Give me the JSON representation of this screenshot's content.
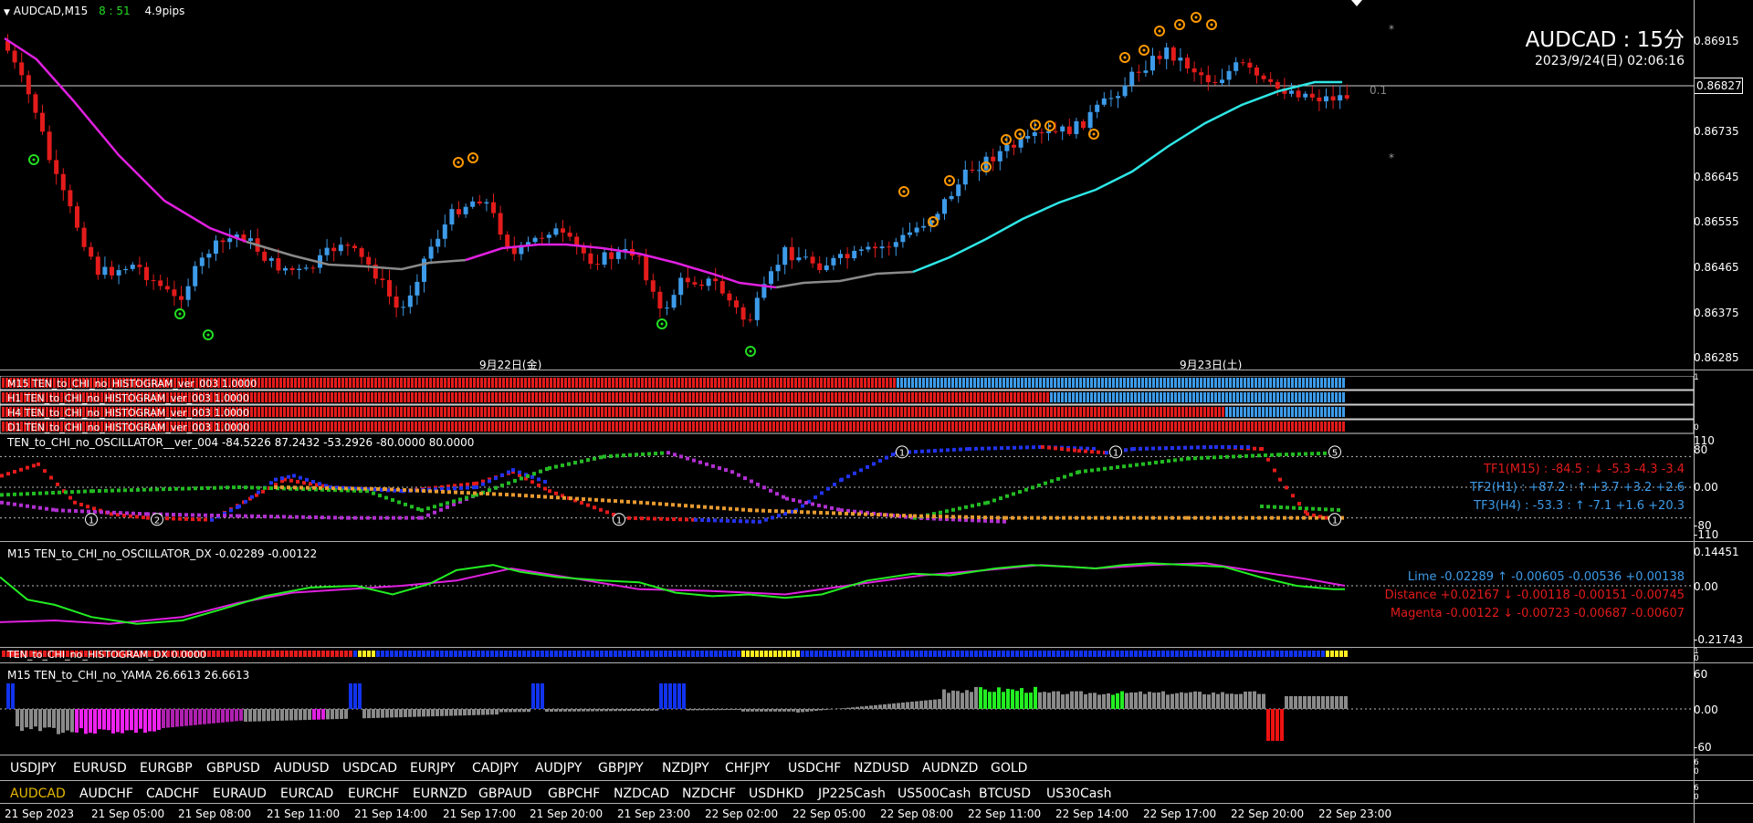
{
  "header": {
    "symbol_tf": "AUDCAD,M15",
    "countdown": "8 : 51",
    "spread": "4.9pips"
  },
  "overlay": {
    "title": "AUDCAD : 15分",
    "datetime": "2023/9/24(日) 02:06:16",
    "level_label": "0.1",
    "star": "*"
  },
  "colors": {
    "bull": "#3d9be9",
    "bear": "#e31b1b",
    "ma_down": "#e020e0",
    "ma_up": "#2ee6e6",
    "ma_flat": "#8a8a8a",
    "signal_orange": "#ff9900",
    "signal_green": "#22dd22"
  },
  "main_chart": {
    "current_price": "0.86827",
    "price_ticks": [
      "0.86915",
      "0.86735",
      "0.86645",
      "0.86555",
      "0.86465",
      "0.86375",
      "0.86285"
    ],
    "date_markers": [
      "9月22日(金)",
      "9月23日(土)"
    ]
  },
  "histograms": {
    "rows": [
      {
        "label": "M15 TEN_to_CHI_no_HISTOGRAM_ver_003 1.0000",
        "bull_from": 0.665
      },
      {
        "label": "H1 TEN_to_CHI_no_HISTOGRAM_ver_003 1.0000",
        "bull_from": 0.78
      },
      {
        "label": "H4 TEN_to_CHI_no_HISTOGRAM_ver_003 1.0000",
        "bull_from": 0.91
      },
      {
        "label": "D1 TEN_to_CHI_no_HISTOGRAM_ver_003 1.0000",
        "bull_from": 1.1
      }
    ],
    "scale": [
      "1",
      "0"
    ]
  },
  "oscillator": {
    "label": "TEN_to_CHI_no_OSCILLATOR__ver_004 -84.5226 87.2432 -53.2926 -80.0000 80.0000",
    "scale": [
      "110",
      "80",
      "0.00",
      "-80",
      "-110"
    ],
    "tf_rows": [
      {
        "text": "TF1(M15) : -84.5 : ↓  -5.3  -4.3  -3.4",
        "color": "#e31b1b"
      },
      {
        "text": "TF2(H1) : +87.2 : ↑  +3.7 +3.2 +2.6",
        "color": "#3d9be9"
      },
      {
        "text": "TF3(H4) : -53.3 : ↑  -7.1 +1.6 +20.3",
        "color": "#3d9be9"
      }
    ],
    "markers": [
      "1",
      "2",
      "1",
      "1",
      "1",
      "5",
      "1"
    ]
  },
  "dx": {
    "label": "M15 TEN_to_CHI_no_OSCILLATOR_DX  -0.02289 -0.00122",
    "scale": [
      "0.14451",
      "0.00",
      "-0.21743"
    ],
    "rows": [
      {
        "text": "Lime -0.02289 ↑ -0.00605 -0.00536 +0.00138",
        "color": "#3d9be9"
      },
      {
        "text": "Distance +0.02167 ↓ -0.00118 -0.00151 -0.00745",
        "color": "#e31b1b"
      },
      {
        "text": "Magenta -0.00122 ↓ -0.00723 -0.00687 -0.00607",
        "color": "#e31b1b"
      }
    ]
  },
  "histdx": {
    "label": "TEN_to_CHI_no_HISTOGRAM_DX 0.0000",
    "scale": [
      "1",
      "0"
    ]
  },
  "yama": {
    "label": "M15  TEN_to_CHI_no_YAMA  26.6613 26.6613",
    "scale": [
      "60",
      "0.00",
      "-60"
    ]
  },
  "symbols_row1": [
    "USDJPY",
    "EURUSD",
    "EURGBP",
    "GBPUSD",
    "AUDUSD",
    "USDCAD",
    "EURJPY",
    "CADJPY",
    "AUDJPY",
    "GBPJPY",
    "NZDJPY",
    "CHFJPY",
    "USDCHF",
    "NZDUSD",
    "AUDNZD",
    "GOLD"
  ],
  "symbols_row2": [
    "AUDCAD",
    "AUDCHF",
    "CADCHF",
    "EURAUD",
    "EURCAD",
    "EURCHF",
    "EURNZD",
    "GBPAUD",
    "GBPCHF",
    "NZDCAD",
    "NZDCHF",
    "USDHKD",
    "JP225Cash",
    "US500Cash",
    "BTCUSD",
    "US30Cash"
  ],
  "time_axis": [
    "21 Sep 2023",
    "21 Sep 05:00",
    "21 Sep 08:00",
    "21 Sep 11:00",
    "21 Sep 14:00",
    "21 Sep 17:00",
    "21 Sep 20:00",
    "21 Sep 23:00",
    "22 Sep 02:00",
    "22 Sep 05:00",
    "22 Sep 08:00",
    "22 Sep 11:00",
    "22 Sep 14:00",
    "22 Sep 17:00",
    "22 Sep 20:00",
    "22 Sep 23:00"
  ],
  "subscale": {
    "s1": [
      "6",
      "0"
    ],
    "s2": [
      "6",
      "0"
    ]
  }
}
